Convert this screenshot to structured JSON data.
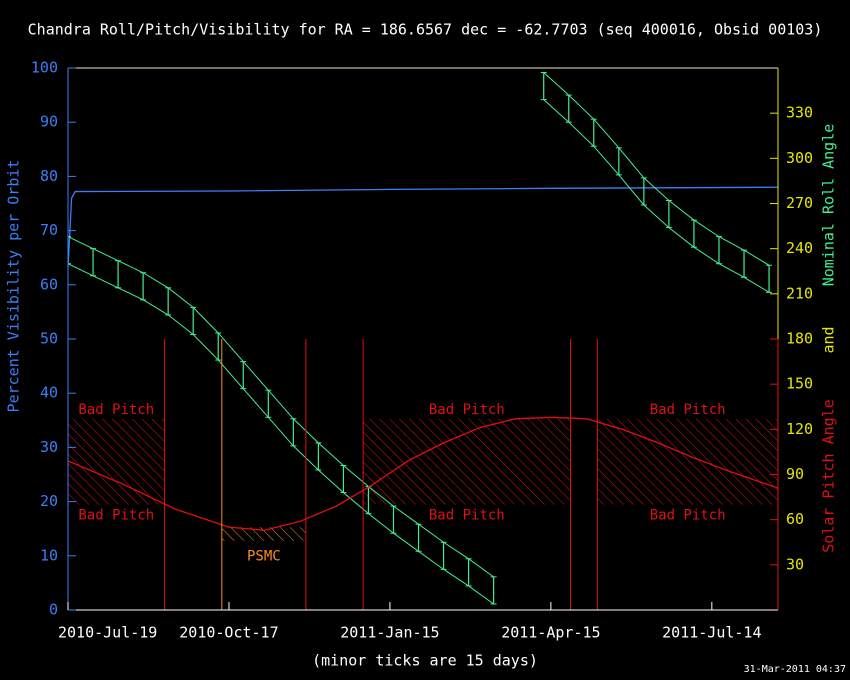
{
  "chart_data": {
    "type": "line",
    "title": "Chandra Roll/Pitch/Visibility for RA = 186.6567 dec = -62.7703 (seq 400016, Obsid 00103)",
    "y_label": "Percent Visibility per Orbit",
    "y2_labels": [
      {
        "text": "Nominal Roll Angle",
        "color": "#40f090"
      },
      {
        "text": "and",
        "color": "#e6e600"
      },
      {
        "text": "Solar Pitch Angle",
        "color": "#e01010"
      }
    ],
    "x_label": "(minor ticks are 15 days)",
    "timestamp": "31-Mar-2011 04:37",
    "xlim": [
      "2010-07-19",
      "2011-08-20"
    ],
    "xticks": [
      {
        "value": "2010-07-19",
        "label": "2010-Jul-19"
      },
      {
        "value": "2010-10-17",
        "label": "2010-Oct-17"
      },
      {
        "value": "2011-01-15",
        "label": "2011-Jan-15"
      },
      {
        "value": "2011-04-15",
        "label": "2011-Apr-15"
      },
      {
        "value": "2011-07-14",
        "label": "2011-Jul-14"
      }
    ],
    "ylim": [
      0,
      100
    ],
    "yticks": [
      0,
      10,
      20,
      30,
      40,
      50,
      60,
      70,
      80,
      90,
      100
    ],
    "y_color": "#3b7ff5",
    "y2lim": [
      0,
      360
    ],
    "y2ticks": [
      30,
      60,
      90,
      120,
      150,
      180,
      210,
      240,
      270,
      300,
      330
    ],
    "y2_color": "#e6e600",
    "series": [
      {
        "axis": "y",
        "color": "#3b7ff5",
        "x": [
          "2010-07-19",
          "2010-07-21",
          "2010-07-23",
          "2010-10-17",
          "2011-01-15",
          "2011-04-15",
          "2011-08-20"
        ],
        "values": [
          63,
          76,
          77.2,
          77.3,
          77.6,
          77.8,
          78
        ]
      },
      {
        "axis": "y2",
        "color": "#40f090",
        "error": 9,
        "x": [
          "2010-07-19",
          "2010-08-02",
          "2010-08-16",
          "2010-08-30",
          "2010-09-13",
          "2010-09-27",
          "2010-10-11",
          "2010-10-25",
          "2010-11-08",
          "2010-11-22",
          "2010-12-06",
          "2010-12-20",
          "2011-01-03",
          "2011-01-17",
          "2011-01-31",
          "2011-02-14",
          "2011-02-28",
          "2011-03-14",
          "2011-03-28",
          "2011-04-11",
          "2011-04-25",
          "2011-05-09",
          "2011-05-23",
          "2011-06-06",
          "2011-06-20",
          "2011-07-04",
          "2011-07-18",
          "2011-08-01",
          "2011-08-15"
        ],
        "values": [
          239,
          231,
          223,
          215,
          205,
          192,
          175,
          156,
          137,
          118,
          102,
          87,
          73,
          60,
          48,
          36,
          25,
          13,
          null,
          348,
          333,
          317,
          298,
          278,
          263,
          250,
          239,
          230,
          220
        ]
      },
      {
        "axis": "y2",
        "color": "#e01010",
        "x": [
          "2010-07-19",
          "2010-08-18",
          "2010-09-17",
          "2010-10-17",
          "2010-11-06",
          "2010-11-26",
          "2010-12-16",
          "2011-01-05",
          "2011-01-25",
          "2011-02-14",
          "2011-03-06",
          "2011-03-26",
          "2011-04-15",
          "2011-05-05",
          "2011-05-25",
          "2011-06-14",
          "2011-07-04",
          "2011-07-24",
          "2011-08-20"
        ],
        "values": [
          99,
          84,
          67,
          55,
          53,
          59,
          69,
          83,
          99,
          111,
          121,
          127,
          128,
          127,
          120,
          111,
          101,
          92,
          81
        ]
      }
    ],
    "zones": [
      {
        "label": "Bad Pitch",
        "start": "2010-07-19",
        "end": "2010-09-11",
        "pitch": [
          70,
          127
        ],
        "color": "#e01010",
        "label_sides": [
          "above",
          "below"
        ]
      },
      {
        "label": "PSMC",
        "start": "2010-10-13",
        "end": "2010-11-29",
        "pitch": [
          46,
          55
        ],
        "color": "#ff8c1a",
        "label_sides": [
          "below"
        ]
      },
      {
        "label": "Bad Pitch",
        "start": "2010-12-31",
        "end": "2011-04-26",
        "pitch": [
          70,
          127
        ],
        "color": "#e01010",
        "label_sides": [
          "above",
          "below"
        ]
      },
      {
        "label": "Bad Pitch",
        "start": "2011-05-11",
        "end": "2011-08-20",
        "pitch": [
          70,
          127
        ],
        "color": "#e01010",
        "label_sides": [
          "above",
          "below"
        ]
      }
    ],
    "boundaries": [
      {
        "x": "2010-09-11",
        "color": "#e01010"
      },
      {
        "x": "2010-10-13",
        "color": "#ff8c1a"
      },
      {
        "x": "2010-11-29",
        "color": "#e01010"
      },
      {
        "x": "2010-12-31",
        "color": "#e01010"
      },
      {
        "x": "2011-04-26",
        "color": "#e01010"
      },
      {
        "x": "2011-05-11",
        "color": "#e01010"
      }
    ]
  }
}
